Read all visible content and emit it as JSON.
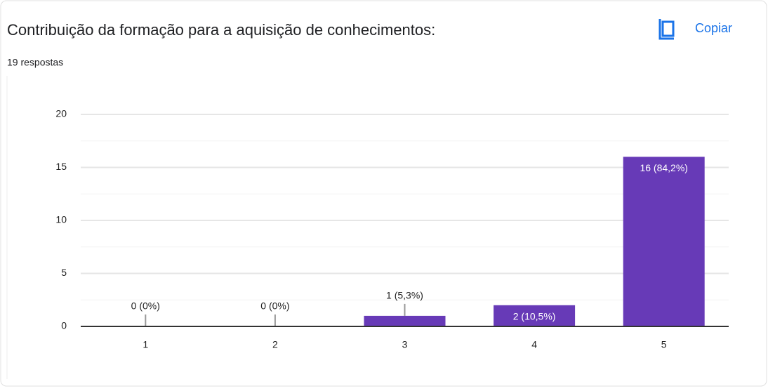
{
  "header": {
    "title": "Contribuição da formação para a aquisição de conhecimentos:",
    "copy_button": "Copiar",
    "responses": "19 respostas"
  },
  "chart_data": {
    "type": "bar",
    "categories": [
      "1",
      "2",
      "3",
      "4",
      "5"
    ],
    "values": [
      0,
      0,
      1,
      2,
      16
    ],
    "value_labels": [
      "0 (0%)",
      "0 (0%)",
      "1 (5,3%)",
      "2 (10,5%)",
      "16 (84,2%)"
    ],
    "color": "#673ab7",
    "ylim": [
      0,
      20
    ],
    "yticks": [
      0,
      5,
      10,
      15,
      20
    ],
    "minor_yticks": [
      2.5,
      7.5,
      12.5,
      17.5
    ],
    "grid": true
  }
}
